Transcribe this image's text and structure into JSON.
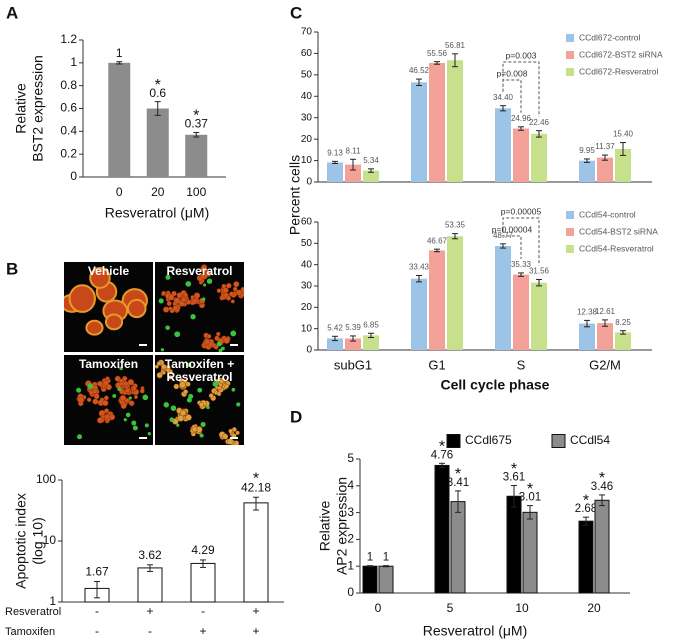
{
  "panels": [
    "A",
    "B",
    "C",
    "D"
  ],
  "images": [
    {
      "label": [
        "Vehicle"
      ]
    },
    {
      "label": [
        "Resveratrol"
      ]
    },
    {
      "label": [
        "Tamoxifen"
      ]
    },
    {
      "label": [
        "Tamoxifen +",
        "Resveratrol"
      ]
    }
  ],
  "panel_c": {
    "ylabel": "Percent cells",
    "xlabel": "Cell cycle phase"
  },
  "chart_data": [
    {
      "type": "bar",
      "ylabel": [
        "Relative",
        "BST2 expression"
      ],
      "xlabel": "Resveratrol (μM)",
      "categories": [
        "0",
        "20",
        "100"
      ],
      "values": [
        1,
        0.6,
        0.37
      ],
      "errors": [
        0.01,
        0.06,
        0.02
      ],
      "stars": [
        null,
        "*",
        "*"
      ],
      "color": "#8c8c8c",
      "ylim": [
        0,
        1.2
      ],
      "yticks": [
        0,
        0.2,
        0.4,
        0.6,
        0.8,
        1,
        1.2
      ]
    },
    {
      "type": "bar",
      "yscale": "log",
      "ylabel": [
        "Apoptotic index",
        "(log 10)"
      ],
      "categories": [
        null,
        null,
        null,
        null
      ],
      "values": [
        1.67,
        3.62,
        4.29,
        42.18
      ],
      "errors": [
        0.5,
        0.45,
        0.6,
        10
      ],
      "stars": [
        null,
        null,
        null,
        "*"
      ],
      "color": "#ffffff",
      "ylim": [
        1,
        100
      ],
      "yticks": [
        1,
        10,
        100
      ],
      "treatments": [
        {
          "name": "Resveratrol",
          "signs": [
            "-",
            "+",
            "-",
            "+"
          ]
        },
        {
          "name": "Tamoxifen",
          "signs": [
            "-",
            "-",
            "+",
            "+"
          ]
        }
      ]
    },
    {
      "type": "bar",
      "categories": [
        null,
        null,
        null,
        null
      ],
      "ylim": [
        0,
        70
      ],
      "yticks": [
        0,
        10,
        20,
        30,
        40,
        50,
        60,
        70
      ],
      "legend": "top-right",
      "brackets": [
        "p=0.003",
        "p=0.008"
      ],
      "series": [
        {
          "name": "CCdl672-control",
          "color": "#9dc3e6",
          "values": [
            9.13,
            46.52,
            34.4,
            9.95
          ],
          "value_labels": [
            "9.13",
            "46.52",
            "34.40",
            "9.95"
          ],
          "errors": [
            0.5,
            1.5,
            1.2,
            0.8
          ]
        },
        {
          "name": "CCdl672-BST2 siRNA",
          "color": "#f4a19a",
          "values": [
            8.11,
            55.56,
            24.96,
            11.37
          ],
          "errors": [
            2.5,
            0.6,
            0.8,
            1.2
          ]
        },
        {
          "name": "CCdl672-Resveratrol",
          "color": "#c6e08c",
          "values": [
            5.34,
            56.81,
            22.46,
            15.4
          ],
          "value_labels": [
            "5.34",
            "56.81",
            "22.46",
            "15.40"
          ],
          "errors": [
            0.8,
            3,
            1.5,
            3
          ]
        }
      ]
    },
    {
      "type": "bar",
      "categories": [
        "subG1",
        "G1",
        "S",
        "G2/M"
      ],
      "ylim": [
        0,
        60
      ],
      "yticks": [
        0,
        10,
        20,
        30,
        40,
        50,
        60
      ],
      "legend": "top-right",
      "brackets": [
        "p=0.00005",
        "p=0.00004"
      ],
      "series": [
        {
          "name": "CCdl54-control",
          "color": "#9dc3e6",
          "values": [
            5.42,
            33.43,
            48.77,
            12.38
          ],
          "errors": [
            1,
            1.5,
            1,
            1.5
          ]
        },
        {
          "name": "CCdl54-BST2 siRNA",
          "color": "#f4a19a",
          "values": [
            5.39,
            46.67,
            35.33,
            12.61
          ],
          "errors": [
            1.2,
            0.6,
            0.8,
            1.5
          ]
        },
        {
          "name": "CCdl54-Resveratrol",
          "color": "#c6e08c",
          "values": [
            6.85,
            53.35,
            31.56,
            8.25
          ],
          "errors": [
            1,
            1.2,
            1.5,
            0.8
          ]
        }
      ]
    },
    {
      "type": "bar",
      "ylabel": [
        "Relative",
        "AP2 expression"
      ],
      "xlabel": "Resveratrol (μM)",
      "legend": "top",
      "categories": [
        "0",
        "5",
        "10",
        "20"
      ],
      "ylim": [
        0,
        5
      ],
      "yticks": [
        0,
        1,
        2,
        3,
        4,
        5
      ],
      "series": [
        {
          "name": "CCdl675",
          "color": "#000000",
          "values": [
            1,
            4.76,
            3.61,
            2.68
          ],
          "errors": [
            0.02,
            0.08,
            0.4,
            0.15
          ],
          "stars": [
            null,
            "*",
            "*",
            "*"
          ]
        },
        {
          "name": "CCdl54",
          "color": "#8c8c8c",
          "values": [
            1,
            3.41,
            3.01,
            3.46
          ],
          "errors": [
            0.02,
            0.4,
            0.25,
            0.2
          ],
          "stars": [
            null,
            "*",
            "*",
            "*"
          ]
        }
      ]
    }
  ]
}
